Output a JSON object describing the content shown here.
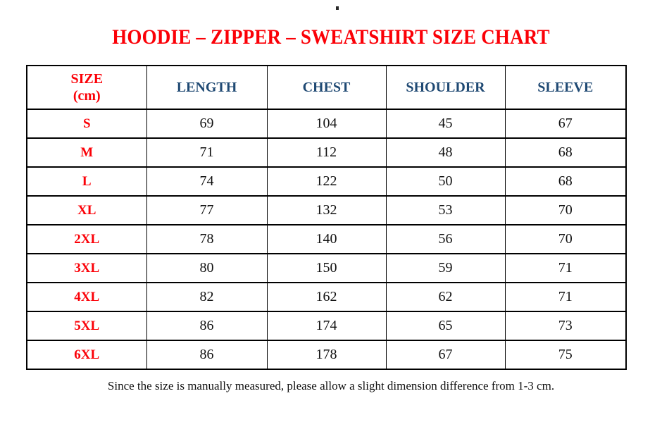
{
  "title": {
    "text": "HOODIE – ZIPPER – SWEATSHIRT SIZE CHART"
  },
  "stray_mark": {
    "glyph": "."
  },
  "colors": {
    "accent_red": "#fb0007",
    "header_blue": "#1f4973",
    "body_text": "#111111",
    "border": "#000000",
    "background": "#ffffff"
  },
  "table": {
    "header": {
      "size_line1": "SIZE",
      "size_line2": "(cm)",
      "columns": [
        "LENGTH",
        "CHEST",
        "SHOULDER",
        "SLEEVE"
      ]
    },
    "rows": [
      {
        "size": "S",
        "length": "69",
        "chest": "104",
        "shoulder": "45",
        "sleeve": "67"
      },
      {
        "size": "M",
        "length": "71",
        "chest": "112",
        "shoulder": "48",
        "sleeve": "68"
      },
      {
        "size": "L",
        "length": "74",
        "chest": "122",
        "shoulder": "50",
        "sleeve": "68"
      },
      {
        "size": "XL",
        "length": "77",
        "chest": "132",
        "shoulder": "53",
        "sleeve": "70"
      },
      {
        "size": "2XL",
        "length": "78",
        "chest": "140",
        "shoulder": "56",
        "sleeve": "70"
      },
      {
        "size": "3XL",
        "length": "80",
        "chest": "150",
        "shoulder": "59",
        "sleeve": "71"
      },
      {
        "size": "4XL",
        "length": "82",
        "chest": "162",
        "shoulder": "62",
        "sleeve": "71"
      },
      {
        "size": "5XL",
        "length": "86",
        "chest": "174",
        "shoulder": "65",
        "sleeve": "73"
      },
      {
        "size": "6XL",
        "length": "86",
        "chest": "178",
        "shoulder": "67",
        "sleeve": "75"
      }
    ]
  },
  "footer": {
    "note": "Since the size is manually measured, please allow a slight dimension difference from 1-3 cm."
  },
  "chart_data": {
    "type": "table",
    "title": "HOODIE – ZIPPER – SWEATSHIRT SIZE CHART",
    "columns": [
      "SIZE (cm)",
      "LENGTH",
      "CHEST",
      "SHOULDER",
      "SLEEVE"
    ],
    "rows": [
      [
        "S",
        69,
        104,
        45,
        67
      ],
      [
        "M",
        71,
        112,
        48,
        68
      ],
      [
        "L",
        74,
        122,
        50,
        68
      ],
      [
        "XL",
        77,
        132,
        53,
        70
      ],
      [
        "2XL",
        78,
        140,
        56,
        70
      ],
      [
        "3XL",
        80,
        150,
        59,
        71
      ],
      [
        "4XL",
        82,
        162,
        62,
        71
      ],
      [
        "5XL",
        86,
        174,
        65,
        73
      ],
      [
        "6XL",
        86,
        178,
        67,
        75
      ]
    ],
    "note": "Since the size is manually measured, please allow a slight dimension difference from 1-3 cm."
  }
}
